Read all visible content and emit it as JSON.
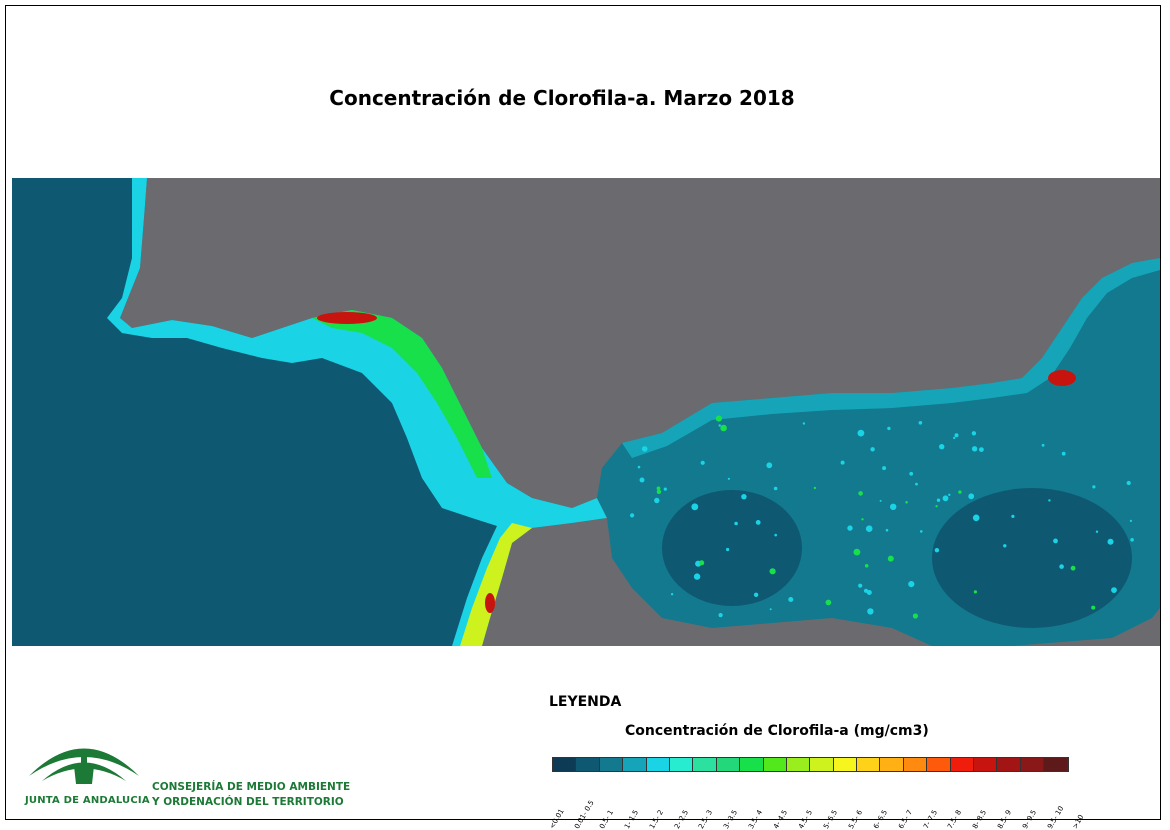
{
  "title": "Concentración de Clorofila-a. Marzo 2018",
  "legend": {
    "title": "LEYENDA",
    "subtitle": "Concentración de Clorofila-a (mg/cm3)",
    "classes": [
      {
        "label": "<0.01",
        "color": "#0d3a55"
      },
      {
        "label": "0.01- 0.5",
        "color": "#0f5872"
      },
      {
        "label": "0.5- 1",
        "color": "#12798e"
      },
      {
        "label": "1- 1.5",
        "color": "#16a5b8"
      },
      {
        "label": "1.5- 2",
        "color": "#1ad4e6"
      },
      {
        "label": "2- 2.5",
        "color": "#27ecd0"
      },
      {
        "label": "2.5- 3",
        "color": "#2ce0a0"
      },
      {
        "label": "3- 3.5",
        "color": "#22d87a"
      },
      {
        "label": "3.5- 4",
        "color": "#18e04a"
      },
      {
        "label": "4- 4.5",
        "color": "#52e81c"
      },
      {
        "label": "4.5- 5",
        "color": "#9aee1e"
      },
      {
        "label": "5- 5.5",
        "color": "#cdf21e"
      },
      {
        "label": "5.5- 6",
        "color": "#f6f51e"
      },
      {
        "label": "6- 6.5",
        "color": "#ffd21a"
      },
      {
        "label": "6.5- 7",
        "color": "#ffb014"
      },
      {
        "label": "7- 7.5",
        "color": "#ff8a10"
      },
      {
        "label": "7.5- 8",
        "color": "#ff5a0c"
      },
      {
        "label": "8- 8.5",
        "color": "#f01c0c"
      },
      {
        "label": "8.5- 9",
        "color": "#c8140e"
      },
      {
        "label": "9- 9.5",
        "color": "#a31414"
      },
      {
        "label": "9.5- 10",
        "color": "#8a1818"
      },
      {
        "label": ">10",
        "color": "#5e1a1a"
      }
    ]
  },
  "logo": {
    "text": "JUNTA DE ANDALUCIA",
    "department_line1": "CONSEJERÍA DE MEDIO AMBIENTE",
    "department_line2": "Y ORDENACIÓN DEL TERRITORIO",
    "color": "#1c7a36"
  },
  "map_colors": {
    "land": "#6b6b6f",
    "open_sea": "#0f5872",
    "mid_sea": "#12798e",
    "coast_band": "#16a5b8",
    "coast_bright": "#1ad4e6",
    "coast_green": "#18e04a",
    "coast_yellow": "#cdf21e",
    "hotspot": "#c8140e"
  }
}
